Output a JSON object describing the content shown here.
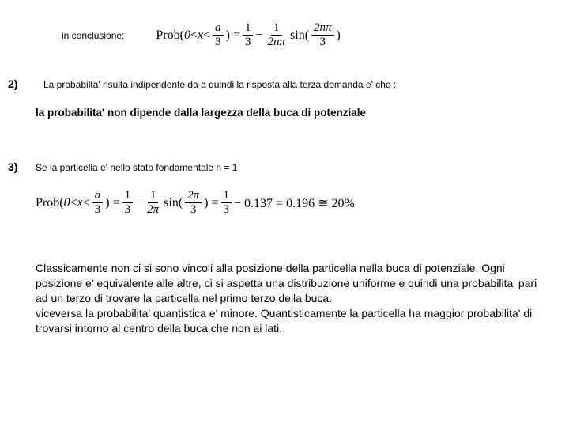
{
  "intro_label": "in conclusione:",
  "formula1": {
    "prob_text": "Prob(",
    "zero": "0",
    "lt1": " < ",
    "x": "x",
    "lt2": " < ",
    "a": "a",
    "three_a": "3",
    "close_eq": ") = ",
    "one": "1",
    "three_b": "3",
    "minus": " − ",
    "one_b": "1",
    "two_n_pi": "2nπ",
    "sin": " sin(",
    "two_n_pi_num": "2nπ",
    "three_c": "3",
    "close": ")"
  },
  "q2_marker": "2)",
  "q2_text": "La probabilta' risulta indipendente da a quindi la risposta alla terza domanda e' che :",
  "q2_bold": "la probabilita' non dipende dalla largezza della buca di potenziale",
  "q3_marker": "3)",
  "q3_text": "Se la particella e' nello stato fondamentale n = 1",
  "formula2": {
    "prob_text": "Prob(",
    "zero": "0",
    "lt1": " < ",
    "x": "x",
    "lt2": " < ",
    "a": "a",
    "three_a": "3",
    "close_eq": ") = ",
    "one": "1",
    "three_b": "3",
    "minus": " − ",
    "one_b": "1",
    "two_pi": "2π",
    "sin": " sin(",
    "two_pi_num": "2π",
    "three_c": "3",
    "close_eq2": ") = ",
    "one_c": "1",
    "three_d": "3",
    "minus2": " − 0.137 = 0.196 ≅ 20%"
  },
  "conclusion": "Classicamente non ci si sono vincoli alla posizione della particella nella buca di potenziale. Ogni posizione e' equivalente alle altre, ci si aspetta una distribuzione uniforme e quindi una probabilita' pari ad un terzo di trovare la particella nel primo terzo della buca.\nviceversa la probabilita' quantistica e' minore. Quantisticamente la particella ha maggior probabilita' di trovarsi intorno al centro della buca che non ai lati."
}
